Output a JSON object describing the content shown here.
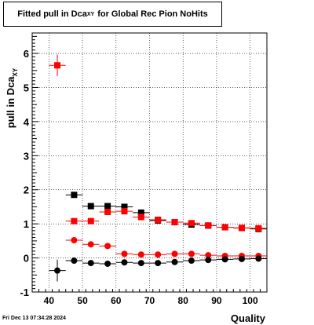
{
  "title": {
    "main": "Fitted pull in Dca",
    "sub": "XY",
    "suffix": "for Global Rec Pion NoHits"
  },
  "timestamp": "Fri Dec 13 07:34:28 2024",
  "chart_data": {
    "type": "scatter",
    "xlabel": "Quality",
    "ylabel_main": "pull in Dca",
    "ylabel_sub": "XY",
    "xlim": [
      35,
      105
    ],
    "ylim": [
      -1,
      6.6
    ],
    "x_ticks": [
      40,
      50,
      60,
      70,
      80,
      90,
      100
    ],
    "y_ticks": [
      -1,
      0,
      1,
      2,
      3,
      4,
      5,
      6
    ],
    "grid": true,
    "series": [
      {
        "marker": "square",
        "color": "#000000",
        "x": [
          47.5,
          52.5,
          57.5,
          62.5,
          67.5,
          72.5,
          77.5,
          82.5,
          87.5,
          92.5,
          97.5,
          102.5
        ],
        "y": [
          1.85,
          1.52,
          1.52,
          1.5,
          1.33,
          1.1,
          1.05,
          0.98,
          0.95,
          0.9,
          0.88,
          0.85
        ]
      },
      {
        "marker": "square",
        "color": "#ff0000",
        "x": [
          42.5,
          47.5,
          52.5,
          57.5,
          62.5,
          67.5,
          72.5,
          77.5,
          82.5,
          87.5,
          92.5,
          97.5,
          102.5
        ],
        "y": [
          5.65,
          1.08,
          1.08,
          1.35,
          1.37,
          1.2,
          1.12,
          1.05,
          1.02,
          0.95,
          0.9,
          0.88,
          0.87
        ],
        "yerr": [
          0.32,
          0,
          0,
          0,
          0,
          0,
          0,
          0,
          0,
          0,
          0,
          0,
          0
        ]
      },
      {
        "marker": "circle",
        "color": "#ff0000",
        "x": [
          47.5,
          52.5,
          57.5,
          62.5,
          67.5,
          72.5,
          77.5,
          82.5,
          87.5,
          92.5,
          97.5,
          102.5
        ],
        "y": [
          0.52,
          0.4,
          0.35,
          0.12,
          0.1,
          0.1,
          0.12,
          0.12,
          0.08,
          0.06,
          0.06,
          0.06
        ]
      },
      {
        "marker": "circle",
        "color": "#000000",
        "x": [
          42.5,
          47.5,
          52.5,
          57.5,
          62.5,
          67.5,
          72.5,
          77.5,
          82.5,
          87.5,
          92.5,
          97.5,
          102.5
        ],
        "y": [
          -0.37,
          -0.08,
          -0.15,
          -0.17,
          -0.13,
          -0.15,
          -0.15,
          -0.12,
          -0.08,
          -0.06,
          -0.04,
          -0.03,
          -0.02
        ],
        "yerr": [
          0.32,
          0,
          0,
          0,
          0,
          0,
          0,
          0,
          0,
          0,
          0,
          0,
          0
        ]
      }
    ]
  }
}
